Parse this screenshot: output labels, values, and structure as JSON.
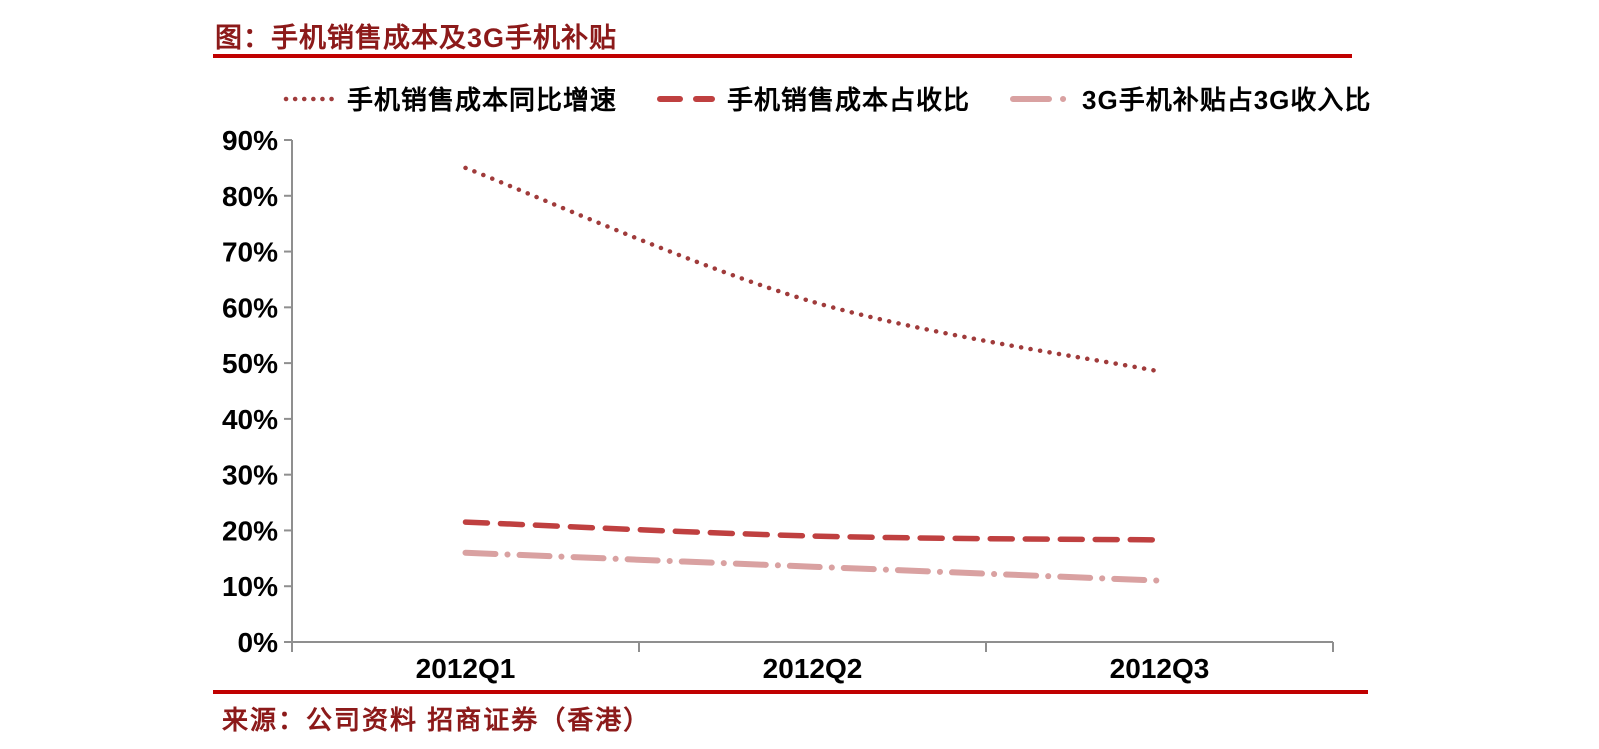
{
  "title": "图：手机销售成本及3G手机补贴",
  "source": "来源：公司资料 招商证券（香港）",
  "colors": {
    "title_text": "#8c1a1a",
    "source_text": "#8c1a1a",
    "divider_rule": "#c00000",
    "axis": "#8f8f8f",
    "tick_label": "#000000"
  },
  "chart_data": {
    "type": "line",
    "categories": [
      "2012Q1",
      "2012Q2",
      "2012Q3"
    ],
    "series": [
      {
        "name": "手机销售成本同比增速",
        "values": [
          85,
          61,
          48.5
        ],
        "color": "#a03b3b",
        "style": "dotted"
      },
      {
        "name": "手机销售成本占收比",
        "values": [
          21.5,
          19,
          18.3
        ],
        "color": "#bf4040",
        "style": "dashed"
      },
      {
        "name": "3G手机补贴占3G收入比",
        "values": [
          16,
          13.5,
          11
        ],
        "color": "#d9a1a1",
        "style": "dashdot"
      }
    ],
    "ylim": [
      0,
      90
    ],
    "ytick_step": 10,
    "ytick_labels": [
      "0%",
      "10%",
      "20%",
      "30%",
      "40%",
      "50%",
      "60%",
      "70%",
      "80%",
      "90%"
    ],
    "grid": false,
    "legend_position": "top"
  }
}
